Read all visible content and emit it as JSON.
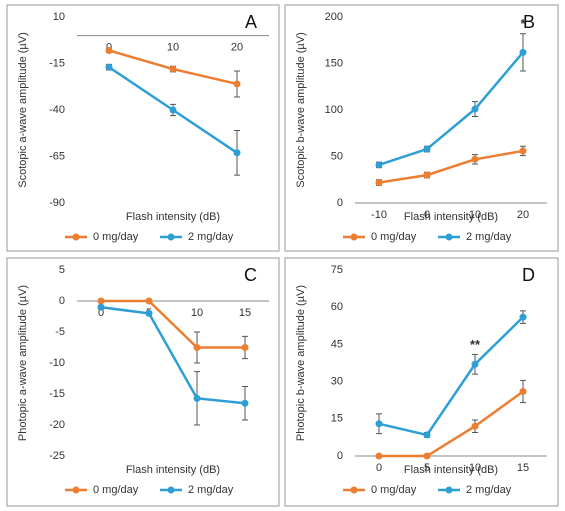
{
  "chart_data": [
    {
      "type": "line",
      "title": "A",
      "xlabel": "Flash intensity (dB)",
      "ylabel": "Scotopic a-wave amplitude (µV)",
      "categories": [
        "0",
        "10",
        "20"
      ],
      "ylim": [
        -90,
        10
      ],
      "yticks": [
        10,
        -15,
        -40,
        -65,
        -90
      ],
      "series": [
        {
          "name": "0 mg/day",
          "color": "#ed7d31",
          "values": [
            -8,
            -18,
            -26
          ],
          "errors": [
            1,
            1.5,
            7
          ]
        },
        {
          "name": "2 mg/day",
          "color": "#2e9fd4",
          "values": [
            -17,
            -40,
            -63
          ],
          "errors": [
            1.5,
            3,
            12
          ]
        }
      ]
    },
    {
      "type": "line",
      "title": "B",
      "xlabel": "Flash intensity (dB)",
      "ylabel": "Scotopic b-wave amplitude (µV)",
      "categories": [
        "-10",
        "0",
        "10",
        "20"
      ],
      "ylim": [
        0,
        200
      ],
      "yticks": [
        0,
        50,
        100,
        150,
        200
      ],
      "annotations": [
        {
          "text": "*",
          "x": "20"
        }
      ],
      "series": [
        {
          "name": "0 mg/day",
          "color": "#ed7d31",
          "values": [
            22,
            30,
            47,
            56
          ],
          "errors": [
            3,
            3,
            5,
            5
          ]
        },
        {
          "name": "2 mg/day",
          "color": "#2e9fd4",
          "values": [
            41,
            58,
            101,
            162
          ],
          "errors": [
            3,
            3,
            8,
            20
          ]
        }
      ]
    },
    {
      "type": "line",
      "title": "C",
      "xlabel": "Flash intensity (dB)",
      "ylabel": "Photopic a-wave amplitude (µV)",
      "categories": [
        "0",
        "5",
        "10",
        "15"
      ],
      "ylim": [
        -25,
        5
      ],
      "yticks": [
        5,
        0,
        -5,
        -10,
        -15,
        -20,
        -25
      ],
      "series": [
        {
          "name": "0 mg/day",
          "color": "#ed7d31",
          "values": [
            0,
            0,
            -7.5,
            -7.5
          ],
          "errors": [
            0,
            0,
            2.5,
            1.8
          ]
        },
        {
          "name": "2 mg/day",
          "color": "#2e9fd4",
          "values": [
            -1,
            -2,
            -15.7,
            -16.5
          ],
          "errors": [
            0.3,
            0.3,
            4.3,
            2.7
          ]
        }
      ]
    },
    {
      "type": "line",
      "title": "D",
      "xlabel": "Flash intensity (dB)",
      "ylabel": "Photopic b-wave amplitude (µV)",
      "categories": [
        "0",
        "5",
        "10",
        "15"
      ],
      "ylim": [
        0,
        75
      ],
      "yticks": [
        0,
        15,
        30,
        45,
        60,
        75
      ],
      "annotations": [
        {
          "text": "**",
          "x": "10"
        }
      ],
      "series": [
        {
          "name": "0 mg/day",
          "color": "#ed7d31",
          "values": [
            0,
            0,
            12,
            26
          ],
          "errors": [
            0,
            0,
            2.5,
            4.5
          ]
        },
        {
          "name": "2 mg/day",
          "color": "#2e9fd4",
          "values": [
            13,
            8.5,
            37,
            56
          ],
          "errors": [
            4,
            1,
            4,
            2.5
          ]
        }
      ]
    }
  ]
}
